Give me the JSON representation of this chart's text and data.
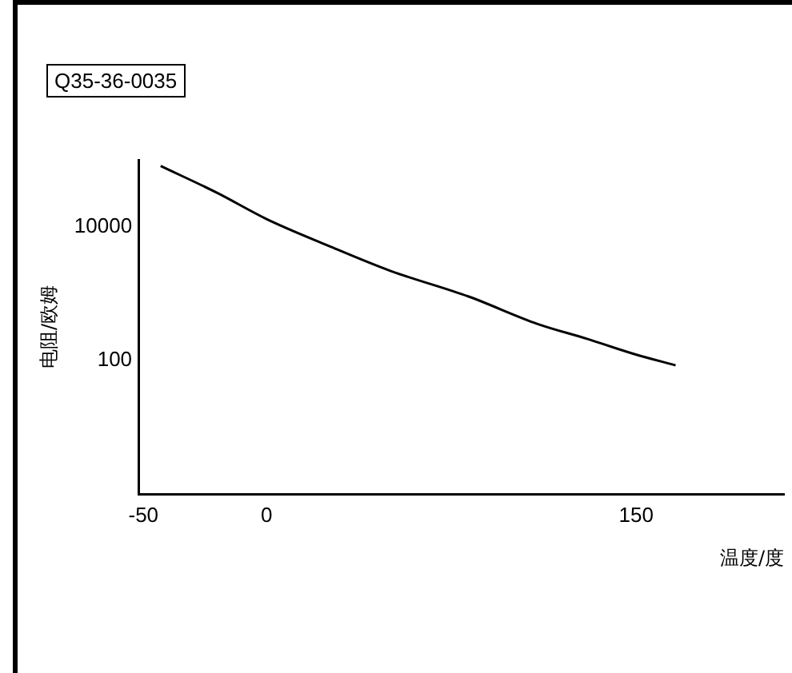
{
  "chart_data": {
    "type": "line",
    "xlabel": "温度/度",
    "ylabel": "电阻/欧姆",
    "annotations": [
      "Q35-36-0035"
    ],
    "x": [
      -43,
      -20,
      0,
      25,
      50,
      82,
      110,
      130,
      149,
      166
    ],
    "series": [
      {
        "color": "#000000",
        "values": [
          81000,
          32000,
          13000,
          5200,
          2200,
          900,
          350,
          210,
          125,
          84
        ]
      }
    ],
    "log": "y",
    "xlim": [
      -52,
      210
    ],
    "ylim": [
      1,
      100000
    ],
    "xticks": [
      -50,
      0,
      150
    ],
    "yticks": [
      10000,
      100
    ],
    "grid": false,
    "legend": false,
    "marker": "none",
    "line_style": "solid"
  }
}
